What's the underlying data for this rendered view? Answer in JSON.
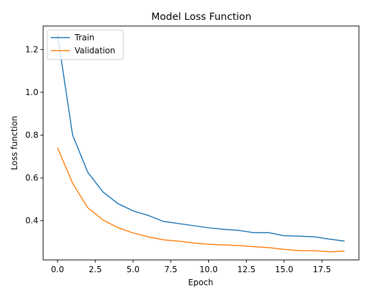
{
  "chart_data": {
    "type": "line",
    "title": "Model Loss Function",
    "xlabel": "Epoch",
    "ylabel": "Loss function",
    "x": [
      0,
      1,
      2,
      3,
      4,
      5,
      6,
      7,
      8,
      9,
      10,
      11,
      12,
      13,
      14,
      15,
      16,
      17,
      18,
      19
    ],
    "xlim": [
      -0.95,
      19.95
    ],
    "ylim": [
      0.217,
      1.31
    ],
    "xticks": [
      0.0,
      2.5,
      5.0,
      7.5,
      10.0,
      12.5,
      15.0,
      17.5
    ],
    "xtick_labels": [
      "0.0",
      "2.5",
      "5.0",
      "7.5",
      "10.0",
      "12.5",
      "15.0",
      "17.5"
    ],
    "yticks": [
      0.4,
      0.6,
      0.8,
      1.0,
      1.2
    ],
    "ytick_labels": [
      "0.4",
      "0.6",
      "0.8",
      "1.0",
      "1.2"
    ],
    "grid": false,
    "legend_position": "top-left",
    "series": [
      {
        "name": "Train",
        "color": "#1f77b4",
        "values": [
          1.27,
          0.8,
          0.627,
          0.535,
          0.48,
          0.446,
          0.425,
          0.397,
          0.387,
          0.377,
          0.367,
          0.36,
          0.355,
          0.344,
          0.344,
          0.33,
          0.328,
          0.325,
          0.314,
          0.305
        ]
      },
      {
        "name": "Validation",
        "color": "#ff7f0e",
        "values": [
          0.741,
          0.575,
          0.461,
          0.404,
          0.368,
          0.343,
          0.325,
          0.311,
          0.305,
          0.296,
          0.29,
          0.287,
          0.284,
          0.279,
          0.274,
          0.266,
          0.26,
          0.26,
          0.255,
          0.258
        ]
      }
    ]
  }
}
